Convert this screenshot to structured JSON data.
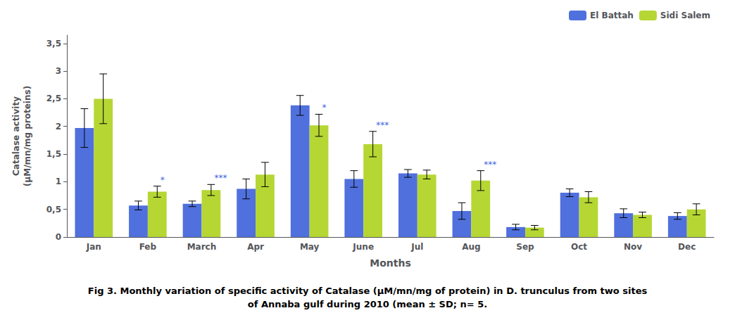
{
  "chart_data": {
    "type": "bar",
    "title": "Fig 3. Monthly variation of specific activity of Catalase (μM/mn/mg of protein) in D. trunculus from two sites\nof Annaba gulf during 2010 (mean ± SD; n= 5.",
    "categories": [
      "Jan",
      "Feb",
      "March",
      "Apr",
      "May",
      "June",
      "Jul",
      "Aug",
      "Sep",
      "Oct",
      "Nov",
      "Dec"
    ],
    "series": [
      {
        "name": "El Battah",
        "values": [
          1.97,
          0.57,
          0.6,
          0.87,
          2.38,
          1.05,
          1.15,
          0.47,
          0.18,
          0.8,
          0.43,
          0.38
        ],
        "errors": [
          0.35,
          0.08,
          0.05,
          0.18,
          0.18,
          0.15,
          0.07,
          0.15,
          0.05,
          0.07,
          0.08,
          0.06
        ]
      },
      {
        "name": "Sidi Salem",
        "values": [
          2.5,
          0.82,
          0.85,
          1.13,
          2.02,
          1.68,
          1.13,
          1.02,
          0.17,
          0.72,
          0.4,
          0.5
        ],
        "errors": [
          0.45,
          0.1,
          0.1,
          0.22,
          0.2,
          0.23,
          0.08,
          0.18,
          0.04,
          0.1,
          0.05,
          0.1
        ]
      }
    ],
    "annotations": [
      {
        "text": "*",
        "category": "Feb",
        "series": "Sidi Salem",
        "color": "#4169E1"
      },
      {
        "text": "***",
        "category": "March",
        "series": "Sidi Salem",
        "color": "#4169E1"
      },
      {
        "text": "*",
        "category": "May",
        "series": "Sidi Salem",
        "color": "#4169E1"
      },
      {
        "text": "***",
        "category": "June",
        "series": "Sidi Salem",
        "color": "#4169E1"
      },
      {
        "text": "***",
        "category": "Aug",
        "series": "Sidi Salem",
        "color": "#4169E1"
      }
    ],
    "xlabel": "Months",
    "ylabel": "Catalase activity\n(μM/mn/mg proteins)",
    "ylim": [
      0,
      3.65
    ],
    "yticks": [
      0,
      {
        "value": 0.5,
        "label": "0,5"
      },
      1,
      {
        "value": 1.5,
        "label": "1,5"
      },
      2,
      {
        "value": 2.5,
        "label": "2,5"
      },
      3,
      {
        "value": 3.5,
        "label": "3,5"
      }
    ],
    "grid": false,
    "legend": "upper right"
  }
}
